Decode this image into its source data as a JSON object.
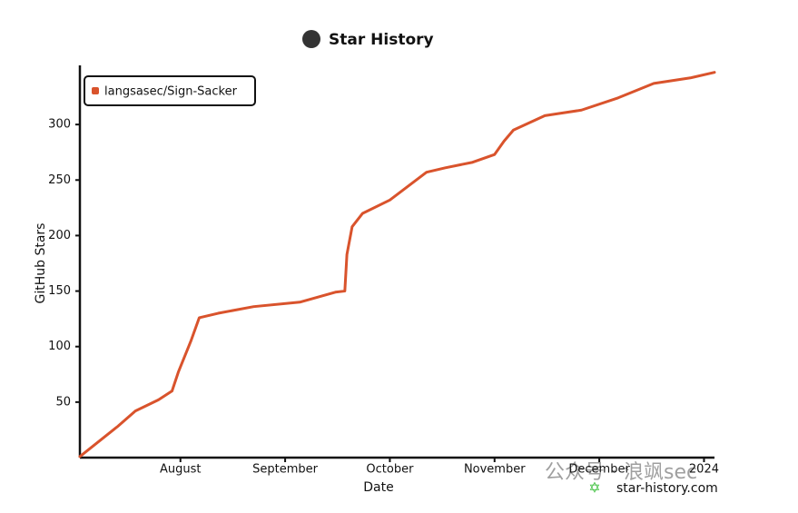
{
  "chart_data": {
    "type": "line",
    "title": "Star History",
    "x_label": "Date",
    "y_label": "GitHub Stars",
    "x": [
      0.04,
      0.4,
      0.57,
      0.79,
      0.92,
      0.98,
      1.1,
      1.18,
      1.36,
      1.7,
      2.14,
      2.48,
      2.57,
      2.59,
      2.64,
      2.74,
      3.0,
      3.35,
      3.53,
      3.79,
      4.0,
      4.09,
      4.18,
      4.48,
      4.83,
      5.18,
      5.52,
      5.87,
      6.1
    ],
    "series": [
      {
        "name": "langsasec/Sign-Sacker",
        "color": "#d9532c",
        "values": [
          1,
          28,
          42,
          52,
          60,
          77,
          105,
          126,
          130,
          136,
          140,
          149,
          150,
          183,
          208,
          220,
          232,
          257,
          261,
          266,
          273,
          285,
          295,
          308,
          313,
          324,
          337,
          342,
          347
        ]
      }
    ],
    "xlim": [
      0.04,
      6.1
    ],
    "xticks": [
      {
        "value": 1,
        "label": "August"
      },
      {
        "value": 2,
        "label": "September"
      },
      {
        "value": 3,
        "label": "October"
      },
      {
        "value": 4,
        "label": "November"
      },
      {
        "value": 5,
        "label": "December"
      },
      {
        "value": 6,
        "label": "2024"
      }
    ],
    "ylim": [
      0,
      350
    ],
    "yticks": [
      50,
      100,
      150,
      200,
      250,
      300
    ],
    "legend": "top-left",
    "watermark": "star-history.com",
    "overlay": "公众号 · 浪飒sec"
  }
}
